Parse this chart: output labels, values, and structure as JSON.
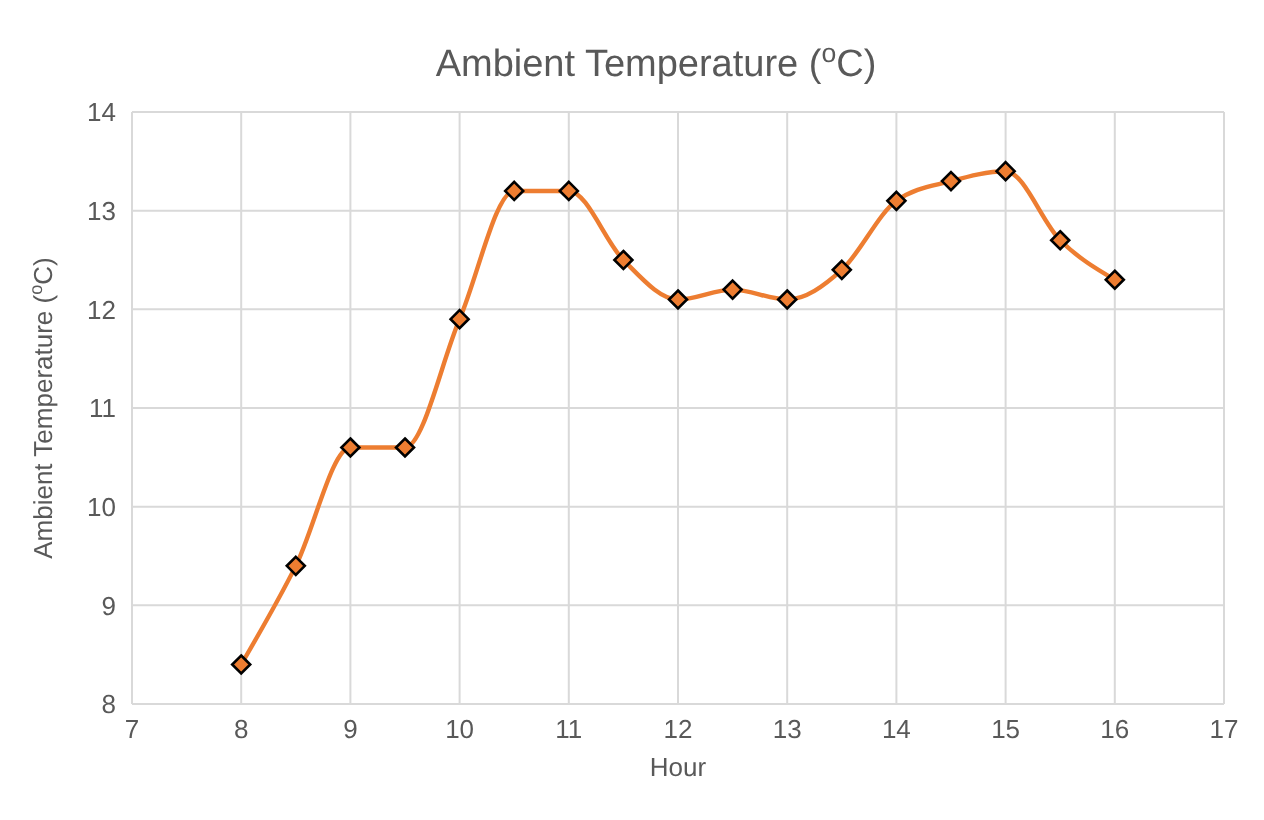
{
  "chart_data": {
    "type": "line",
    "title": "Ambient Temperature ($^{o}$C)",
    "xlabel": "Hour",
    "ylabel": "Ambient Temperature ($^{o}$C)",
    "x": [
      8,
      8.5,
      9,
      9.5,
      10,
      10.5,
      11,
      11.5,
      12,
      12.5,
      13,
      13.5,
      14,
      14.5,
      15,
      15.5,
      16
    ],
    "series": [
      {
        "color": "#ed7d31",
        "values": [
          8.4,
          9.4,
          10.6,
          10.6,
          11.9,
          13.2,
          13.2,
          12.5,
          12.1,
          12.2,
          12.1,
          12.4,
          13.1,
          13.3,
          13.4,
          12.7,
          12.3
        ]
      }
    ],
    "xlim": [
      7,
      17
    ],
    "xticks": [
      7,
      8,
      9,
      10,
      11,
      12,
      13,
      14,
      15,
      16,
      17
    ],
    "ylim": [
      8,
      14
    ],
    "yticks": [
      8,
      9,
      10,
      11,
      12,
      13,
      14
    ],
    "grid": true,
    "legend": false,
    "marker": "diamond",
    "line_style": "solid"
  }
}
